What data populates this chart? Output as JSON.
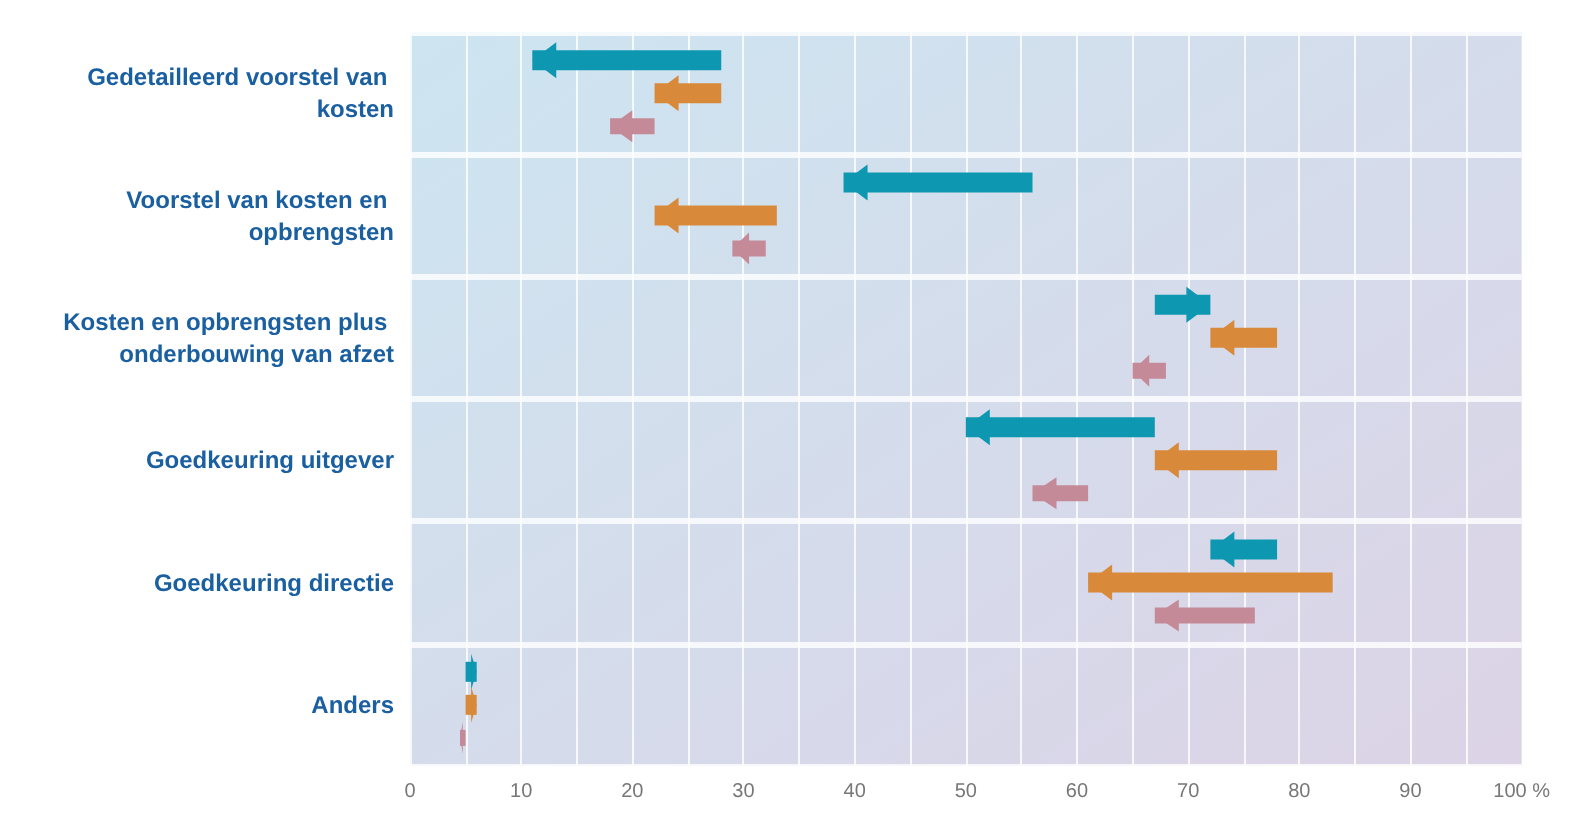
{
  "chart_data": {
    "type": "bar",
    "orientation": "horizontal",
    "categories": [
      "Gedetailleerd voorstel van kosten",
      "Voorstel van kosten en opbrengsten",
      "Kosten en opbrengsten plus onderbouwing van afzet",
      "Goedkeuring uitgever",
      "Goedkeuring directie",
      "Anders"
    ],
    "series": [
      {
        "color": "#0e97b0",
        "base": [
          28,
          56,
          67,
          67,
          78,
          5
        ],
        "values": [
          -17,
          -17,
          5,
          -17,
          -6,
          1
        ]
      },
      {
        "color": "#d88a3a",
        "base": [
          28,
          33,
          78,
          78,
          83,
          5
        ],
        "values": [
          -6,
          -11,
          -6,
          -11,
          -22,
          1
        ]
      },
      {
        "color": "#c48a98",
        "base": [
          22,
          32,
          68,
          61,
          76,
          5
        ],
        "values": [
          -4,
          -3,
          -3,
          -5,
          -9,
          -0.5
        ]
      }
    ],
    "xlim": [
      0,
      100
    ],
    "xticks": [
      0,
      {
        "value": 5,
        "label": null
      },
      10,
      {
        "value": 15,
        "label": null
      },
      20,
      {
        "value": 25,
        "label": null
      },
      30,
      {
        "value": 35,
        "label": null
      },
      40,
      {
        "value": 45,
        "label": null
      },
      50,
      {
        "value": 55,
        "label": null
      },
      60,
      {
        "value": 65,
        "label": null
      },
      70,
      {
        "value": 75,
        "label": null
      },
      80,
      {
        "value": 85,
        "label": null
      },
      90,
      {
        "value": 95,
        "label": null
      },
      {
        "value": 100,
        "label": "100 %"
      }
    ],
    "grid": true
  }
}
